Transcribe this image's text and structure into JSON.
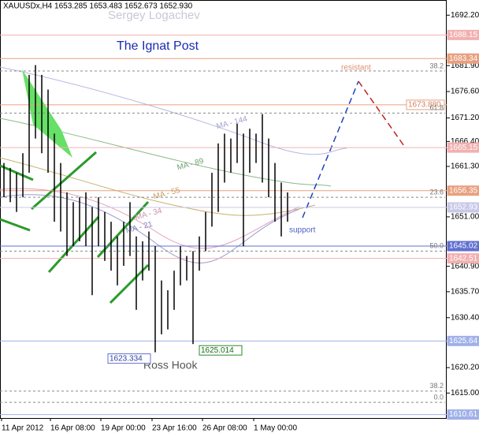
{
  "chart_data": {
    "type": "range",
    "header": "XAUUSDx,H4  1653.285 1653.483 1652.673 1652.930",
    "title": "The Ignat Post",
    "author": "Sergey Logachev",
    "annotations_text": {
      "resistant": "resistant",
      "support": "support",
      "ross": "Ross Hook"
    },
    "ma_labels": [
      "MA - 144",
      "MA - 89",
      "MA - 55",
      "MA - 34",
      "MA - 21"
    ],
    "categories": [
      "11 Apr 2012",
      "16 Apr 08:00",
      "19 Apr 00:00",
      "23 Apr 16:00",
      "26 Apr 08:00",
      "1 May 00:00"
    ],
    "high": [
      1662,
      1661,
      1660,
      1664,
      1680,
      1682,
      1680,
      1677,
      1668,
      1662,
      1656,
      1654,
      1655,
      1656,
      1653,
      1655,
      1652,
      1650,
      1647,
      1650,
      1654,
      1647,
      1646,
      1648,
      1645,
      1638,
      1636,
      1640,
      1645,
      1643,
      1644,
      1647,
      1652,
      1660,
      1666,
      1668,
      1667,
      1670,
      1668,
      1669,
      1668,
      1672,
      1667,
      1662,
      1658,
      1656
    ],
    "low": [
      1655,
      1654,
      1652,
      1655,
      1660,
      1667,
      1664,
      1660,
      1650,
      1648,
      1643,
      1645,
      1646,
      1645,
      1635,
      1645,
      1642,
      1640,
      1637,
      1641,
      1643,
      1632,
      1638,
      1640,
      1623.334,
      1627,
      1628,
      1632,
      1637,
      1638,
      1625.014,
      1640,
      1644,
      1649,
      1652,
      1658,
      1660,
      1662,
      1645,
      1660,
      1662,
      1658,
      1655,
      1650,
      1647,
      1650
    ],
    "low_labels": [
      {
        "index": 24,
        "value": 1623.334
      },
      {
        "index": 30,
        "value": 1625.014
      }
    ],
    "levels": [
      {
        "value": 1688.15,
        "color": "#f2b0b0"
      },
      {
        "value": 1683.34,
        "color": "#e8a080"
      },
      {
        "value": 1673.88,
        "label": "1673.880",
        "color": "#e8a080"
      },
      {
        "value": 1665.15,
        "color": "#f2b0b0"
      },
      {
        "value": 1656.35,
        "color": "#e8a080"
      },
      {
        "value": 1652.93,
        "color": "#c8c8e8"
      },
      {
        "value": 1645.02,
        "color": "#6070d0"
      },
      {
        "value": 1642.51,
        "color": "#f2b0b0"
      },
      {
        "value": 1625.64,
        "color": "#a0b0e8"
      },
      {
        "value": 1610.61,
        "color": "#a0b0e8"
      }
    ],
    "fib": [
      {
        "label": "38.2",
        "price": 1680.8
      },
      {
        "label": "61.8",
        "price": 1672.2
      },
      {
        "label": "23.6",
        "price": 1655
      },
      {
        "label": "50.0",
        "price": 1644
      },
      {
        "label": "38.2",
        "price": 1615.4
      },
      {
        "label": "0.0",
        "price": 1613.1
      }
    ],
    "ylim": [
      1609.9,
      1695.3
    ],
    "yticks": [
      {
        "value": 1692.2,
        "label": "1692.20"
      },
      {
        "value": 1681.9,
        "label": "1681.90"
      },
      {
        "value": 1676.6,
        "label": "1676.60"
      },
      {
        "value": 1671.2,
        "label": "1671.20"
      },
      {
        "value": 1666.4,
        "label": "1666.40"
      },
      {
        "value": 1661.3,
        "label": "1661.30"
      },
      {
        "value": 1651,
        "label": "1651.00"
      },
      {
        "value": 1640.9,
        "label": "1640.90"
      },
      {
        "value": 1635.7,
        "label": "1635.70"
      },
      {
        "value": 1630.4,
        "label": "1630.40"
      },
      {
        "value": 1620.2,
        "label": "1620.20"
      },
      {
        "value": 1615,
        "label": "1615.00"
      }
    ],
    "color": "#000000"
  }
}
